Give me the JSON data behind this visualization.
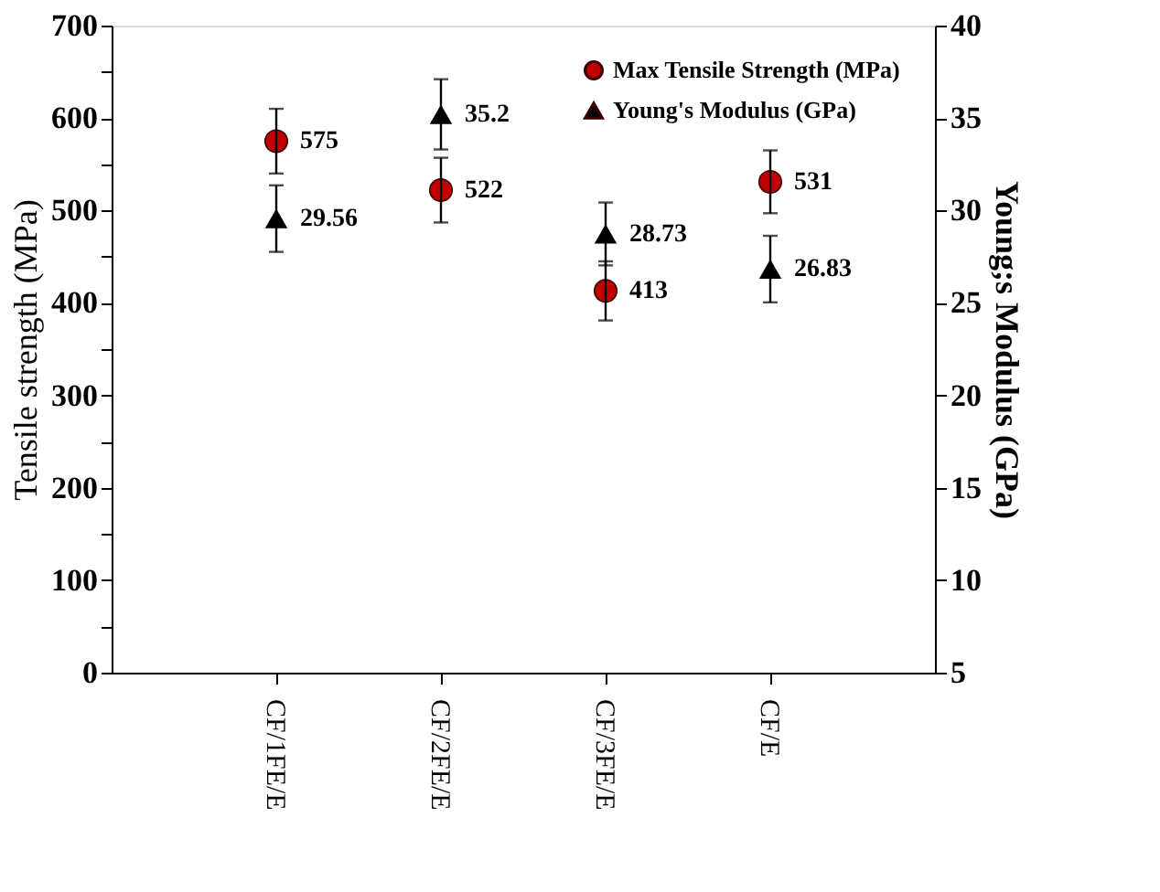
{
  "chart_data": {
    "type": "scatter",
    "categories": [
      "CF/1FE/E",
      "CF/2FE/E",
      "CF/3FE/E",
      "CF/E"
    ],
    "ylabel": "Tensile strength (MPa)",
    "y2label": "Young;s Modulus (GPa)",
    "series": [
      {
        "name": "Max Tensile Strength (MPa)",
        "color": "#c00000",
        "marker": "circle",
        "values": [
          575,
          522,
          413,
          531
        ],
        "errors": [
          35,
          35,
          32,
          34
        ]
      },
      {
        "name": "Young's Modulus (GPa)",
        "color": "#000000",
        "marker": "triangle",
        "axis": "y2",
        "values": [
          29.56,
          35.2,
          28.73,
          26.83
        ],
        "errors": [
          1.8,
          1.9,
          1.7,
          1.8
        ]
      }
    ],
    "ylim": [
      0,
      700
    ],
    "yticks": [
      0,
      {
        "value": 50,
        "label": null
      },
      100,
      {
        "value": 150,
        "label": null
      },
      200,
      {
        "value": 250,
        "label": null
      },
      300,
      {
        "value": 350,
        "label": null
      },
      400,
      {
        "value": 450,
        "label": null
      },
      500,
      {
        "value": 550,
        "label": null
      },
      600,
      {
        "value": 650,
        "label": null
      },
      700
    ],
    "y2lim": [
      5,
      40
    ],
    "y2ticks": [
      5,
      10,
      15,
      20,
      25,
      30,
      35,
      40
    ],
    "data_labels": true,
    "legend": "top right",
    "grid": false
  }
}
